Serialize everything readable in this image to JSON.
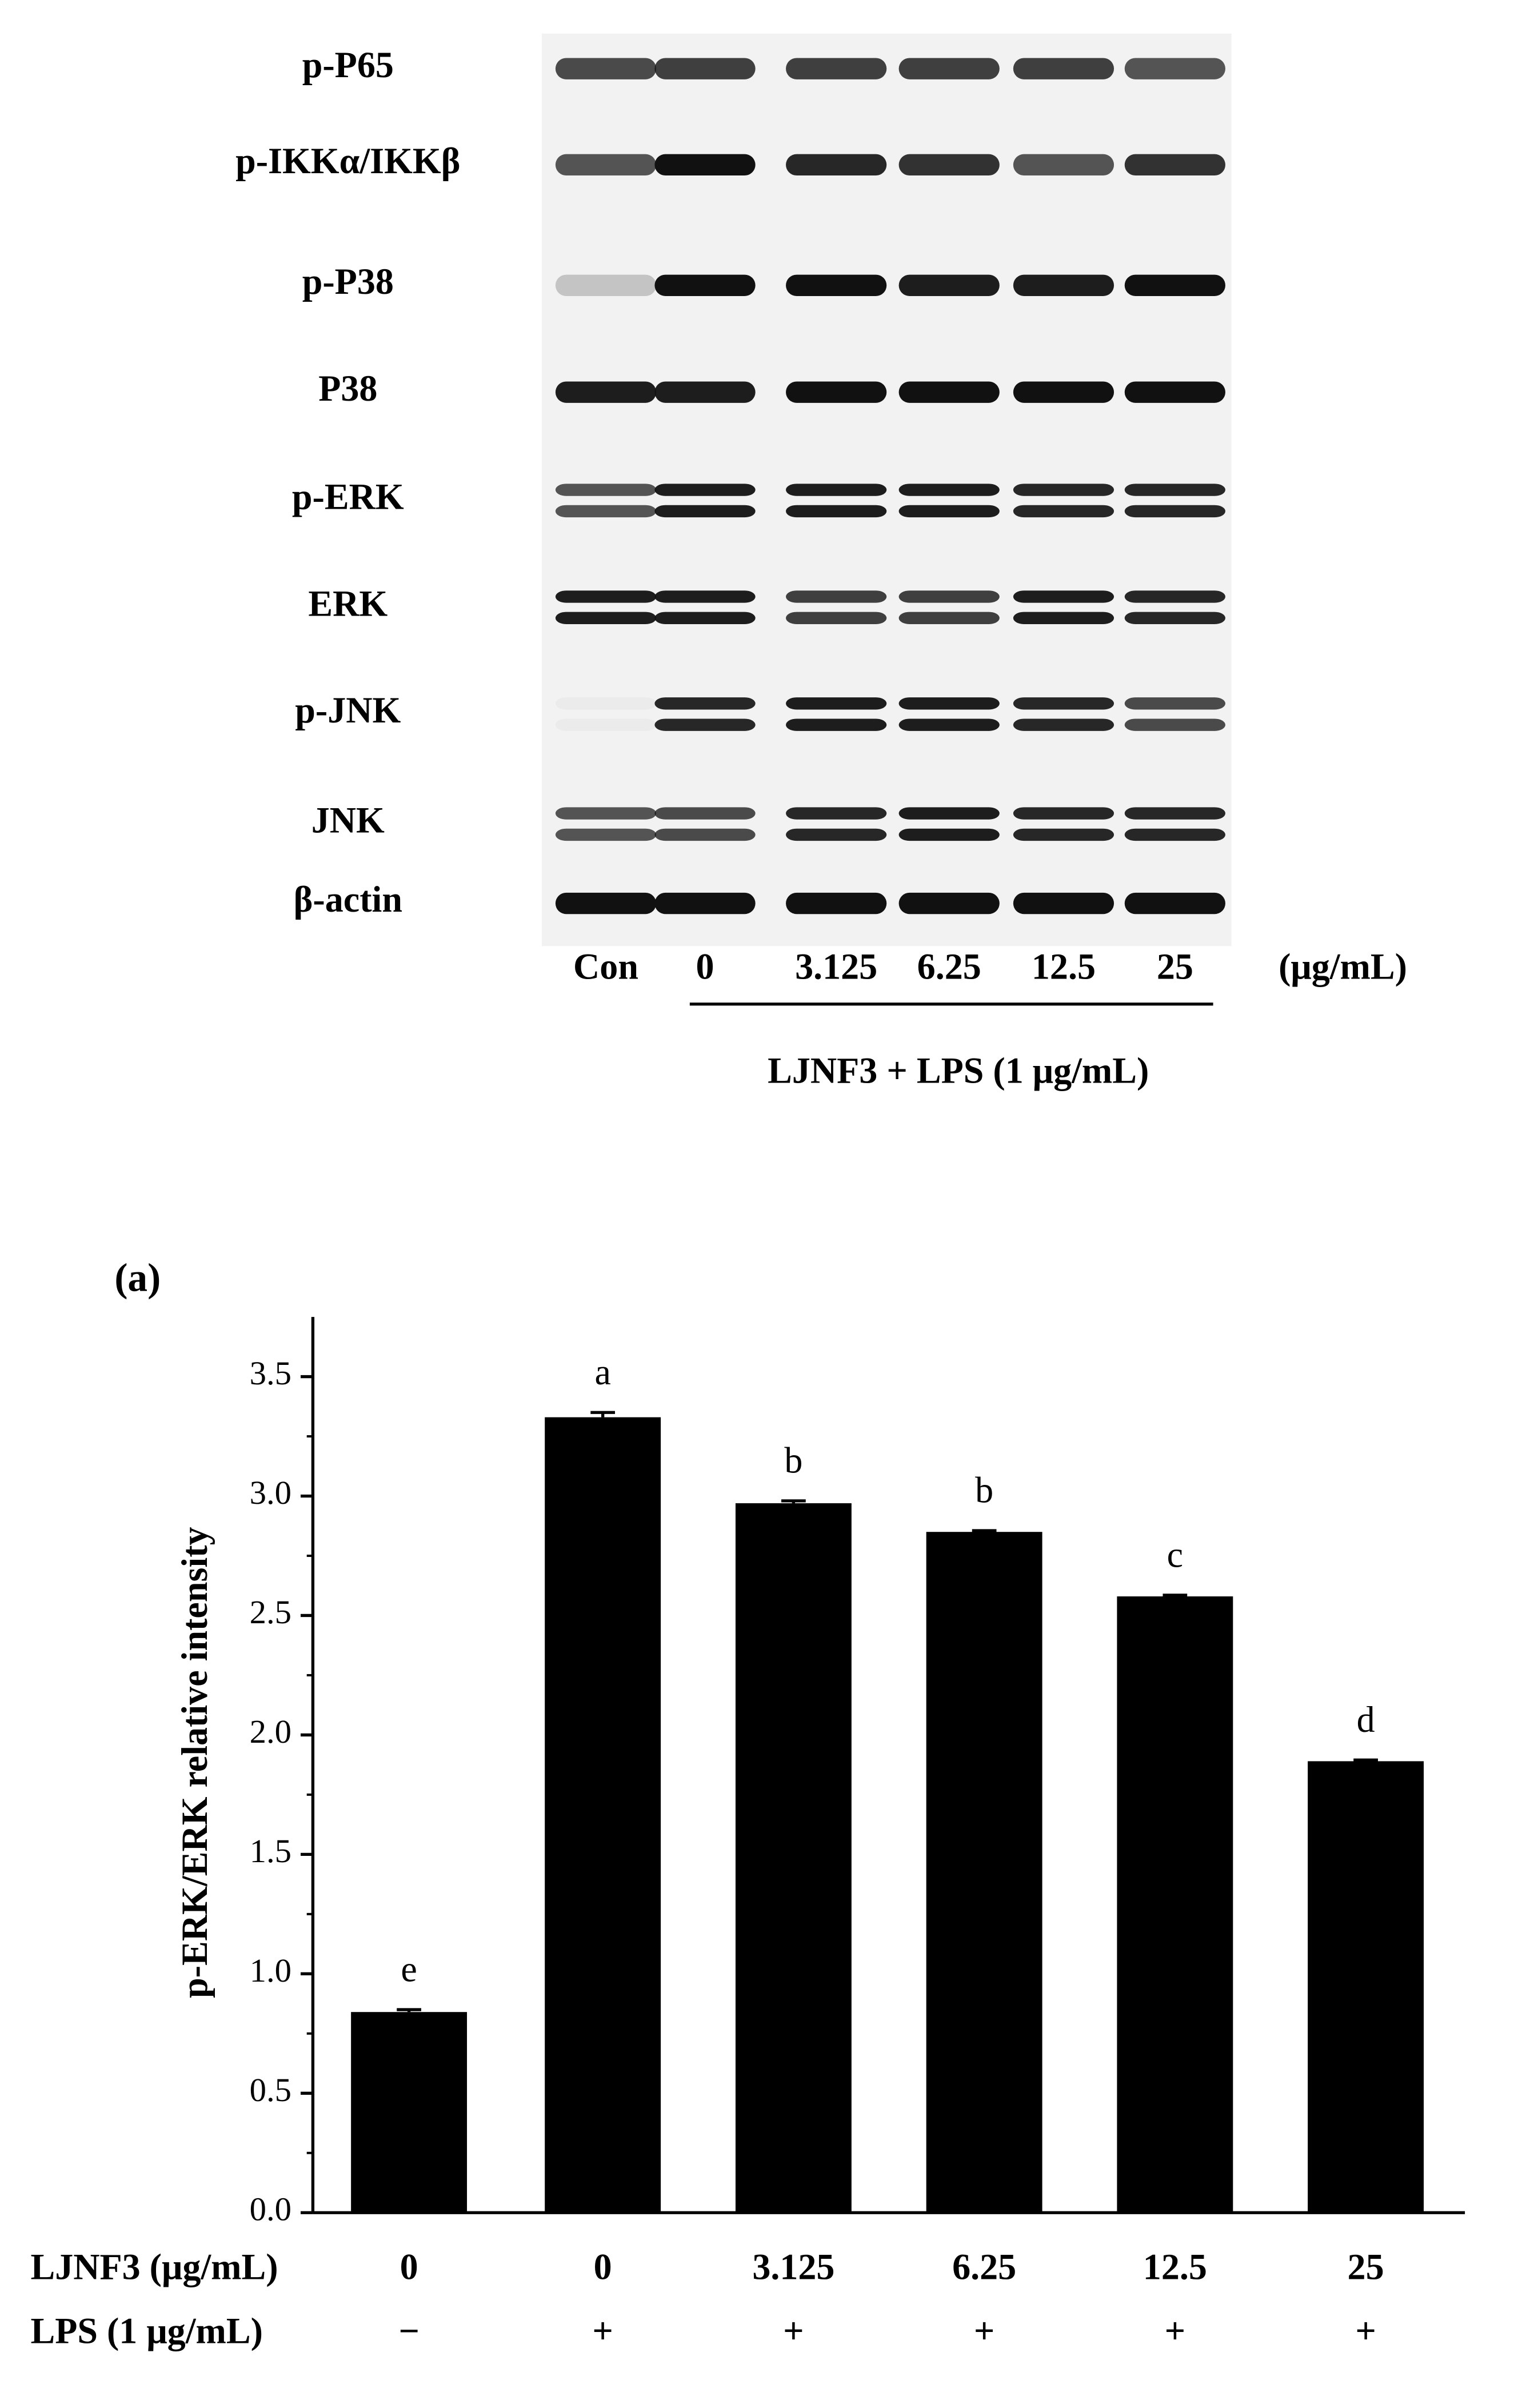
{
  "blot": {
    "rows": [
      "p-P65",
      "p-IKKα/IKKβ",
      "p-P38",
      "P38",
      "p-ERK",
      "ERK",
      "p-JNK",
      "JNK",
      "β-actin"
    ],
    "lanes": [
      "Con",
      "0",
      "3.125",
      "6.25",
      "12.5",
      "25"
    ],
    "unit": "(μg/mL)",
    "treatment": "LJNF3 + LPS (1 μg/mL)"
  },
  "chart_data": {
    "type": "bar",
    "title": "(a)",
    "y_label": "p-ERK/ERK relative intensity",
    "row_labels": [
      "LJNF3 (μg/mL)",
      "LPS (1 μg/mL)"
    ],
    "categories": [
      "0",
      "0",
      "3.125",
      "6.25",
      "12.5",
      "25"
    ],
    "lps": [
      "−",
      "+",
      "+",
      "+",
      "+",
      "+"
    ],
    "values": [
      0.84,
      3.33,
      2.97,
      2.85,
      2.58,
      1.89
    ],
    "errors": [
      0.01,
      0.02,
      0.01,
      0.005,
      0.005,
      0.005
    ],
    "annotations": [
      "e",
      "a",
      "b",
      "b",
      "c",
      "d"
    ],
    "color": "#000000",
    "ylim": [
      0,
      3.75
    ],
    "yticks": [
      {
        "value": 0,
        "label": "0.0"
      },
      0.5,
      {
        "value": 1,
        "label": "1.0"
      },
      1.5,
      {
        "value": 2,
        "label": "2.0"
      },
      2.5,
      {
        "value": 3,
        "label": "3.0"
      },
      3.5
    ],
    "minor_yticks": [
      0.25,
      0.75,
      1.25,
      1.75,
      2.25,
      2.75,
      3.25
    ]
  }
}
